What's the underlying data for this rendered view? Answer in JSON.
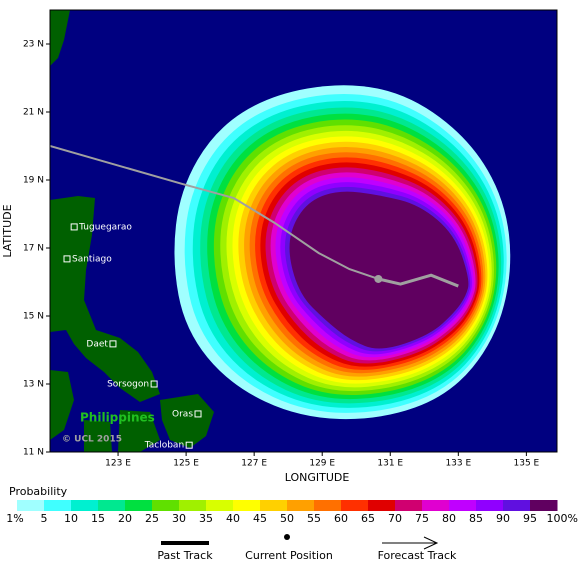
{
  "chart_data": {
    "type": "map",
    "xlabel": "LONGITUDE",
    "ylabel": "LATITUDE",
    "xlim": [
      121,
      135.9
    ],
    "ylim": [
      11,
      24
    ],
    "xticks": [
      {
        "value": 123,
        "label": "123 E"
      },
      {
        "value": 125,
        "label": "125 E"
      },
      {
        "value": 127,
        "label": "127 E"
      },
      {
        "value": 129,
        "label": "129 E"
      },
      {
        "value": 131,
        "label": "131 E"
      },
      {
        "value": 133,
        "label": "133 E"
      },
      {
        "value": 135,
        "label": "135 E"
      }
    ],
    "yticks": [
      {
        "value": 11,
        "label": "11 N"
      },
      {
        "value": 13,
        "label": "13 N"
      },
      {
        "value": 15,
        "label": "15 N"
      },
      {
        "value": 17,
        "label": "17 N"
      },
      {
        "value": 19,
        "label": "19 N"
      },
      {
        "value": 21,
        "label": "21 N"
      },
      {
        "value": 23,
        "label": "23 N"
      }
    ],
    "past_track": {
      "name": "Past Track",
      "color": "#a0a0a0",
      "x": [
        121,
        124.9,
        126.4,
        127.6,
        128.9,
        129.8,
        130.65
      ],
      "y": [
        20.0,
        18.88,
        18.47,
        17.74,
        16.85,
        16.38,
        16.09
      ]
    },
    "current_position": {
      "name": "Current Position",
      "x": 130.65,
      "y": 16.09
    },
    "forecast_track": {
      "name": "Forecast Track",
      "color": "#a0a0a0",
      "x": [
        130.65,
        131.3,
        132.2,
        133.0
      ],
      "y": [
        16.09,
        15.94,
        16.2,
        15.88
      ]
    },
    "legend": {
      "title": "Probability",
      "labels": [
        "1%",
        "5",
        "10",
        "15",
        "20",
        "25",
        "30",
        "35",
        "40",
        "45",
        "50",
        "55",
        "60",
        "65",
        "70",
        "75",
        "80",
        "85",
        "90",
        "95",
        "100%"
      ],
      "colors": [
        "#a0ffff",
        "#40ffff",
        "#00f0d0",
        "#00e890",
        "#00e040",
        "#60e000",
        "#a0f000",
        "#d8ff00",
        "#ffff00",
        "#ffd000",
        "#ffa000",
        "#ff7000",
        "#ff3000",
        "#e00000",
        "#d00070",
        "#e000d0",
        "#c000ff",
        "#9000ff",
        "#6010e0",
        "#600060"
      ]
    },
    "places": [
      {
        "name": "Tuguegarao",
        "x": 121.71,
        "y": 17.62
      },
      {
        "name": "Santiago",
        "x": 121.5,
        "y": 16.68
      },
      {
        "name": "Daet",
        "x": 122.85,
        "y": 14.18
      },
      {
        "name": "Sorsogon",
        "x": 124.06,
        "y": 13.0
      },
      {
        "name": "Oras",
        "x": 125.35,
        "y": 12.12
      },
      {
        "name": "Tacloban",
        "x": 125.09,
        "y": 11.2
      }
    ],
    "country": "Philippines",
    "watermark": "© UCL 2015"
  }
}
